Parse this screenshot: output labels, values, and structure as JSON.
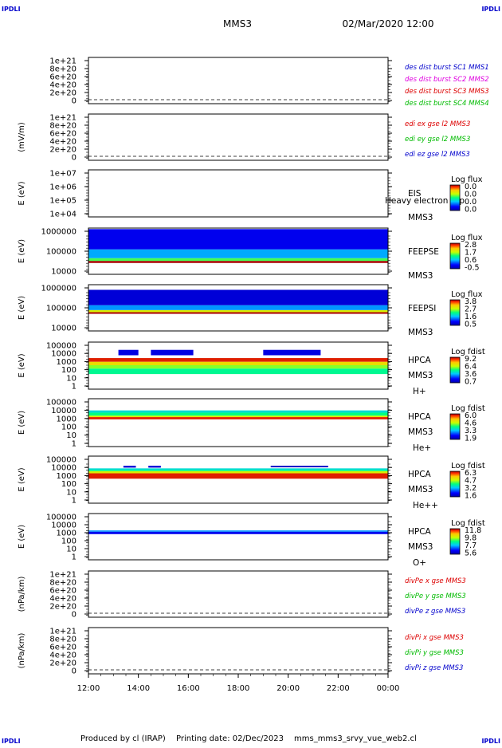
{
  "corner_label": "IPDLI",
  "header": {
    "spacecraft": "MMS3",
    "date": "02/Mar/2020 12:00"
  },
  "footer": {
    "produced_by": "Produced by cl (IRAP)",
    "printing_date": "Printing date: 02/Dec/2023",
    "script": "mms_mms3_srvy_vue_web2.cl"
  },
  "time_axis": {
    "ticks": [
      "12:00",
      "14:00",
      "16:00",
      "18:00",
      "20:00",
      "22:00",
      "00:00"
    ]
  },
  "colors": {
    "blue": "#0000cc",
    "magenta": "#e000e0",
    "red": "#dd0000",
    "green": "#00bb00"
  },
  "chart_data": [
    {
      "id": "des-dist",
      "type": "line",
      "ylabel": "",
      "yticks": [
        "1e+21",
        "8e+20",
        "6e+20",
        "4e+20",
        "2e+20",
        "0"
      ],
      "ylim": [
        0,
        1e+21
      ],
      "legend": [
        {
          "text": "des dist burst SC1 MMS1",
          "color": "#0000cc"
        },
        {
          "text": "des dist burst SC2 MMS2",
          "color": "#e000e0"
        },
        {
          "text": "des dist burst SC3 MMS3",
          "color": "#dd0000"
        },
        {
          "text": "des dist burst SC4 MMS4",
          "color": "#00bb00"
        }
      ],
      "series": [],
      "zero_line": true
    },
    {
      "id": "edi-e",
      "type": "line",
      "ylabel": "(mV/m)",
      "yticks": [
        "1e+21",
        "8e+20",
        "6e+20",
        "4e+20",
        "2e+20",
        "0"
      ],
      "ylim": [
        0,
        1e+21
      ],
      "legend": [
        {
          "text": "edi ex gse l2 MMS3",
          "color": "#dd0000"
        },
        {
          "text": "edi ey gse l2 MMS3",
          "color": "#00bb00"
        },
        {
          "text": "edi ez gse l2 MMS3",
          "color": "#0000cc"
        }
      ],
      "series": [],
      "zero_line": true
    },
    {
      "id": "eis",
      "type": "heatmap",
      "ylabel": "E (eV)",
      "yticks": [
        "1e+07",
        "1e+06",
        "1e+05",
        "1e+04"
      ],
      "yscale": "log",
      "ylim": [
        10000.0,
        10000000.0
      ],
      "instrument": [
        "EIS",
        "MMS3"
      ],
      "overlay_text": "Heavy electron top",
      "colorbar": {
        "title": "Log flux",
        "labels": [
          "0.0",
          "0.0",
          "0.0",
          "0.0"
        ]
      },
      "coverage": []
    },
    {
      "id": "feeps-e",
      "type": "heatmap",
      "ylabel": "E (eV)",
      "yticks": [
        "1000000",
        "100000",
        "10000"
      ],
      "yscale": "log",
      "ylim": [
        10000.0,
        1000000.0
      ],
      "instrument": [
        "FEEPSE",
        "MMS3"
      ],
      "colorbar": {
        "title": "Log flux",
        "labels": [
          "2.8",
          "1.7",
          "0.6",
          "-0.5"
        ]
      },
      "coverage": [
        {
          "t": [
            0,
            12
          ],
          "e": [
            31000.0,
            38000.0
          ],
          "level": 1.0
        },
        {
          "t": [
            0,
            12
          ],
          "e": [
            38000.0,
            50000.0
          ],
          "level": 0.55
        },
        {
          "t": [
            0,
            12
          ],
          "e": [
            50000.0,
            120000.0
          ],
          "level": 0.32
        },
        {
          "t": [
            0,
            12
          ],
          "e": [
            120000.0,
            900000.0
          ],
          "level": 0.12
        }
      ]
    },
    {
      "id": "feeps-i",
      "type": "heatmap",
      "ylabel": "E (eV)",
      "yticks": [
        "1000000",
        "100000",
        "10000"
      ],
      "yscale": "log",
      "ylim": [
        10000.0,
        1000000.0
      ],
      "instrument": [
        "FEEPSI",
        "MMS3"
      ],
      "colorbar": {
        "title": "Log flux",
        "labels": [
          "3.8",
          "2.7",
          "1.6",
          "0.5"
        ]
      },
      "coverage": [
        {
          "t": [
            0,
            12
          ],
          "e": [
            55000.0,
            65000.0
          ],
          "level": 1.0
        },
        {
          "t": [
            0,
            12
          ],
          "e": [
            65000.0,
            80000.0
          ],
          "level": 0.7
        },
        {
          "t": [
            0,
            12
          ],
          "e": [
            80000.0,
            130000.0
          ],
          "level": 0.3
        },
        {
          "t": [
            0,
            12
          ],
          "e": [
            130000.0,
            600000.0
          ],
          "level": 0.08
        }
      ]
    },
    {
      "id": "hpca-h",
      "type": "heatmap",
      "ylabel": "E (eV)",
      "yticks": [
        "100000",
        "10000",
        "1000",
        "100",
        "10",
        "1"
      ],
      "yscale": "log",
      "ylim": [
        1,
        100000.0
      ],
      "instrument": [
        "HPCA",
        "MMS3"
      ],
      "species": "H+",
      "colorbar": {
        "title": "Log fdist",
        "labels": [
          "9.2",
          "6.4",
          "3.6",
          "0.7"
        ]
      },
      "coverage": [
        {
          "t": [
            0,
            12
          ],
          "e": [
            800,
            2000
          ],
          "level": 0.95
        },
        {
          "t": [
            0,
            12
          ],
          "e": [
            350,
            800
          ],
          "level": 0.75
        },
        {
          "t": [
            0,
            12
          ],
          "e": [
            150,
            350
          ],
          "level": 0.6
        },
        {
          "t": [
            0,
            12
          ],
          "e": [
            40,
            150
          ],
          "level": 0.48
        },
        {
          "t": [
            1.2,
            2.0
          ],
          "e": [
            4000.0,
            15000.0
          ],
          "level": 0.1
        },
        {
          "t": [
            2.5,
            4.2
          ],
          "e": [
            4000.0,
            15000.0
          ],
          "level": 0.1
        },
        {
          "t": [
            7.0,
            9.3
          ],
          "e": [
            4000.0,
            15000.0
          ],
          "level": 0.1
        }
      ]
    },
    {
      "id": "hpca-he",
      "type": "heatmap",
      "ylabel": "E (eV)",
      "yticks": [
        "100000",
        "10000",
        "1000",
        "100",
        "10",
        "1"
      ],
      "yscale": "log",
      "ylim": [
        1,
        100000.0
      ],
      "instrument": [
        "HPCA",
        "MMS3"
      ],
      "species": "He+",
      "colorbar": {
        "title": "Log fdist",
        "labels": [
          "6.0",
          "4.6",
          "3.3",
          "1.9"
        ]
      },
      "coverage": [
        {
          "t": [
            0,
            12
          ],
          "e": [
            700,
            1200
          ],
          "level": 0.95
        },
        {
          "t": [
            0,
            12
          ],
          "e": [
            1200,
            1700
          ],
          "level": 0.7
        },
        {
          "t": [
            0,
            12
          ],
          "e": [
            1700,
            3500
          ],
          "level": 0.5
        },
        {
          "t": [
            0,
            12
          ],
          "e": [
            3500,
            6000
          ],
          "level": 0.4
        }
      ]
    },
    {
      "id": "hpca-he2",
      "type": "heatmap",
      "ylabel": "E (eV)",
      "yticks": [
        "100000",
        "10000",
        "1000",
        "100",
        "10",
        "1"
      ],
      "yscale": "log",
      "ylim": [
        1,
        100000.0
      ],
      "instrument": [
        "HPCA",
        "MMS3"
      ],
      "species": "He++",
      "colorbar": {
        "title": "Log fdist",
        "labels": [
          "6.3",
          "4.7",
          "3.2",
          "1.6"
        ]
      },
      "coverage": [
        {
          "t": [
            0,
            12
          ],
          "e": [
            400,
            1500
          ],
          "level": 0.95
        },
        {
          "t": [
            0,
            12
          ],
          "e": [
            1500,
            2500
          ],
          "level": 0.7
        },
        {
          "t": [
            0,
            12
          ],
          "e": [
            2500,
            3500
          ],
          "level": 0.5
        },
        {
          "t": [
            0,
            12
          ],
          "e": [
            3500,
            5000
          ],
          "level": 0.4
        },
        {
          "t": [
            1.4,
            1.9
          ],
          "e": [
            6000,
            9500
          ],
          "level": 0.08
        },
        {
          "t": [
            2.4,
            2.9
          ],
          "e": [
            6000,
            9500
          ],
          "level": 0.08
        },
        {
          "t": [
            7.3,
            9.6
          ],
          "e": [
            6500,
            9500
          ],
          "level": 0.05
        }
      ]
    },
    {
      "id": "hpca-o",
      "type": "heatmap",
      "ylabel": "E (eV)",
      "yticks": [
        "100000",
        "10000",
        "1000",
        "100",
        "10",
        "1"
      ],
      "yscale": "log",
      "ylim": [
        1,
        100000.0
      ],
      "instrument": [
        "HPCA",
        "MMS3"
      ],
      "species": "O+",
      "colorbar": {
        "title": "Log fdist",
        "labels": [
          "11.8",
          "9.8",
          "7.7",
          "5.6"
        ]
      },
      "coverage": [
        {
          "t": [
            0,
            12
          ],
          "e": [
            600,
            1100
          ],
          "level": 0.12
        },
        {
          "t": [
            0,
            12
          ],
          "e": [
            1100,
            1500
          ],
          "level": 0.3
        }
      ]
    },
    {
      "id": "div-pe",
      "type": "line",
      "ylabel": "(nPa/km)",
      "yticks": [
        "1e+21",
        "8e+20",
        "6e+20",
        "4e+20",
        "2e+20",
        "0"
      ],
      "ylim": [
        0,
        1e+21
      ],
      "legend": [
        {
          "text": "divPe x gse MMS3",
          "color": "#dd0000"
        },
        {
          "text": "divPe y gse MMS3",
          "color": "#00bb00"
        },
        {
          "text": "divPe z gse MMS3",
          "color": "#0000cc"
        }
      ],
      "series": [],
      "zero_line": true
    },
    {
      "id": "div-pi",
      "type": "line",
      "ylabel": "(nPa/km)",
      "yticks": [
        "1e+21",
        "8e+20",
        "6e+20",
        "4e+20",
        "2e+20",
        "0"
      ],
      "ylim": [
        0,
        1e+21
      ],
      "legend": [
        {
          "text": "divPi x gse MMS3",
          "color": "#dd0000"
        },
        {
          "text": "divPi y gse MMS3",
          "color": "#00bb00"
        },
        {
          "text": "divPi z gse MMS3",
          "color": "#0000cc"
        }
      ],
      "series": [],
      "zero_line": true
    }
  ]
}
